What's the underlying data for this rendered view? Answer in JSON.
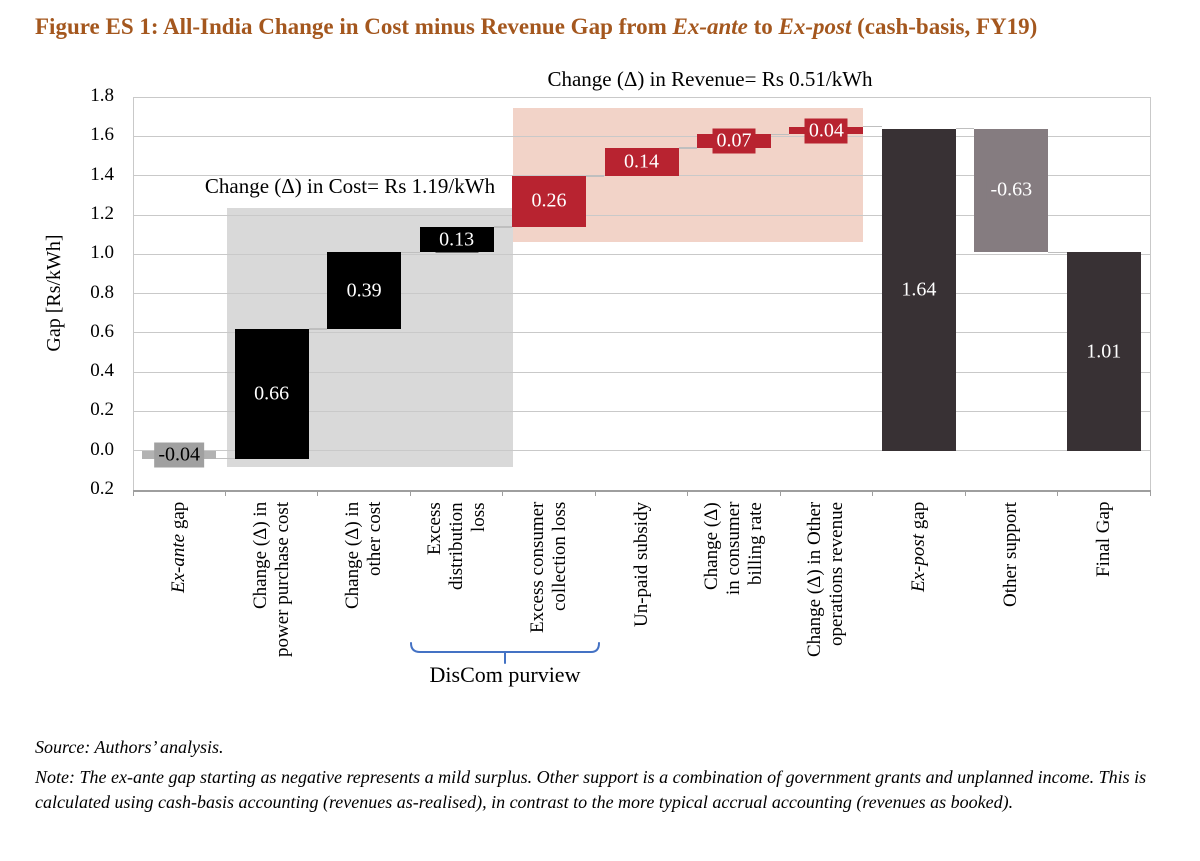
{
  "title": {
    "segments": [
      {
        "t": "Figure ES 1: All-India Change in Cost minus Revenue Gap from ",
        "i": false
      },
      {
        "t": "Ex-ante",
        "i": true
      },
      {
        "t": " to ",
        "i": false
      },
      {
        "t": "Ex-post",
        "i": true
      },
      {
        "t": " (cash-basis, FY19)",
        "i": false
      }
    ]
  },
  "chart_data": {
    "type": "bar",
    "subtype": "waterfall",
    "title": "Figure ES 1: All-India Change in Cost minus Revenue Gap from Ex-ante to Ex-post (cash-basis, FY19)",
    "ylabel": "Gap [Rs/kWh]",
    "ylim": [
      -0.2,
      1.8
    ],
    "ytick_step": 0.2,
    "ytick_labels": [
      "1.8",
      "1.6",
      "1.4",
      "1.2",
      "1.0",
      "0.8",
      "0.6",
      "0.4",
      "0.2",
      "0.0",
      "0.2"
    ],
    "grid": true,
    "categories": [
      "Ex-ante gap",
      "Change (Δ) in power purchase cost",
      "Change (Δ) in other cost",
      "Excess distribution loss",
      "Excess consumer collection loss",
      "Un-paid subsidy",
      "Change (Δ) in consumer billing rate",
      "Change (Δ) in Other operations revenue",
      "Ex-post gap",
      "Other support",
      "Final Gap"
    ],
    "values": [
      -0.04,
      0.66,
      0.39,
      0.13,
      0.26,
      0.14,
      0.07,
      0.04,
      1.64,
      -0.63,
      1.01
    ],
    "bars": [
      {
        "id": "ex-ante-gap",
        "type": "exante",
        "start": 0,
        "end": -0.04,
        "label": "-0.04",
        "segments": [
          {
            "t": "Ex-ante",
            "i": true
          },
          {
            "t": " gap",
            "i": false
          }
        ]
      },
      {
        "id": "power-purchase-cost",
        "type": "cost",
        "start": -0.04,
        "end": 0.62,
        "label": "0.66",
        "segments": [
          {
            "t": "Change (Δ) in\npower purchase cost",
            "i": false
          }
        ]
      },
      {
        "id": "other-cost",
        "type": "cost",
        "start": 0.62,
        "end": 1.01,
        "label": "0.39",
        "segments": [
          {
            "t": "Change (Δ) in\nother cost",
            "i": false
          }
        ]
      },
      {
        "id": "excess-distribution-loss",
        "type": "cost",
        "start": 1.01,
        "end": 1.14,
        "label": "0.13",
        "segments": [
          {
            "t": "Excess\ndistribution\nloss",
            "i": false
          }
        ]
      },
      {
        "id": "excess-consumer-collection-loss",
        "type": "revenue",
        "start": 1.14,
        "end": 1.4,
        "label": "0.26",
        "segments": [
          {
            "t": "Excess consumer\ncollection loss",
            "i": false
          }
        ]
      },
      {
        "id": "un-paid-subsidy",
        "type": "revenue",
        "start": 1.4,
        "end": 1.54,
        "label": "0.14",
        "segments": [
          {
            "t": "Un-paid subsidy",
            "i": false
          }
        ]
      },
      {
        "id": "consumer-billing-rate",
        "type": "revenue",
        "start": 1.54,
        "end": 1.61,
        "label": "0.07",
        "segments": [
          {
            "t": "Change (Δ)\nin consumer\nbilling rate",
            "i": false
          }
        ]
      },
      {
        "id": "other-operations-revenue",
        "type": "revenue",
        "start": 1.61,
        "end": 1.65,
        "label": "0.04",
        "segments": [
          {
            "t": "Change (Δ) in Other\noperations revenue",
            "i": false
          }
        ]
      },
      {
        "id": "ex-post-gap",
        "type": "total",
        "start": 0,
        "end": 1.64,
        "label": "1.64",
        "segments": [
          {
            "t": "Ex-post",
            "i": true
          },
          {
            "t": " gap",
            "i": false
          }
        ]
      },
      {
        "id": "other-support",
        "type": "support",
        "start": 1.01,
        "end": 1.64,
        "label": "-0.63",
        "segments": [
          {
            "t": "Other support",
            "i": false
          }
        ]
      },
      {
        "id": "final-gap",
        "type": "total",
        "start": 0,
        "end": 1.01,
        "label": "1.01",
        "segments": [
          {
            "t": "Final Gap",
            "i": false
          }
        ]
      }
    ],
    "connector_levels": [
      -0.04,
      0.62,
      1.01,
      1.14,
      1.4,
      1.54,
      1.61,
      1.65,
      1.64,
      1.01
    ],
    "regions": [
      {
        "id": "cost-region",
        "covers": "cost change components",
        "total_rs_per_kwh": 1.19,
        "color_key": "cost_region"
      },
      {
        "id": "revenue-region",
        "covers": "revenue change components",
        "total_rs_per_kwh": 0.51,
        "color_key": "revenue_region"
      }
    ],
    "annotations": {
      "cost_note": "Change (Δ) in Cost= Rs 1.19/kWh",
      "revenue_note": "Change (Δ) in Revenue= Rs 0.51/kWh",
      "brace_label": "DisCom purview",
      "brace_covers": [
        "Excess distribution loss",
        "Excess consumer collection loss"
      ]
    },
    "legend_position": "none",
    "colors": {
      "title": "#A4571E",
      "exante_bar": "#B2B2B2",
      "exante_label_bg": "#A0A0A0",
      "cost_bar": "#000000",
      "revenue_bar": "#B82330",
      "total_bar": "#383134",
      "support_bar": "#857C80",
      "cost_region": "#D9D9D9",
      "revenue_region": "#F2D3C8",
      "brace": "#4472C4",
      "gridline": "#C9C9C9",
      "axis": "#9E9E9E",
      "connector": "#BFBFBF",
      "bar_label_text": "#FFFFFF"
    }
  },
  "notes": {
    "source": "Source: Authors’ analysis.",
    "note": "Note: The ex-ante gap starting as negative represents a mild surplus. Other support is a combination of government grants and unplanned income. This is calculated using cash-basis accounting (revenues as-realised), in contrast to the more typical accrual accounting (revenues as booked)."
  }
}
